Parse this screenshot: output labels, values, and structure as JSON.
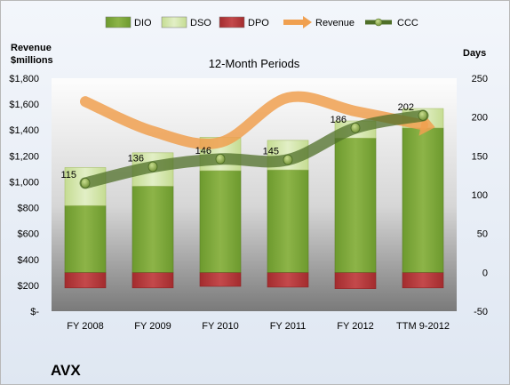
{
  "chart_data": {
    "type": "bar",
    "title": "12-Month Periods",
    "company": "AVX",
    "categories": [
      "FY 2008",
      "FY 2009",
      "FY 2010",
      "FY 2011",
      "FY 2012",
      "TTM 9-2012"
    ],
    "left_axis": {
      "label_line1": "Revenue",
      "label_line2": "$millions",
      "range": [
        0,
        1800
      ],
      "ticks": [
        0,
        200,
        400,
        600,
        800,
        1000,
        1200,
        1400,
        1600,
        1800
      ],
      "tick_labels": [
        "$-",
        "$200",
        "$400",
        "$600",
        "$800",
        "$1,000",
        "$1,200",
        "$1,400",
        "$1,600",
        "$1,800"
      ]
    },
    "right_axis": {
      "label": "Days",
      "range": [
        -50,
        250
      ],
      "ticks": [
        -50,
        0,
        50,
        100,
        150,
        200,
        250
      ],
      "tick_labels": [
        "-50",
        "0",
        "50",
        "100",
        "150",
        "200",
        "250"
      ]
    },
    "legend": [
      "DIO",
      "DSO",
      "DPO",
      "Revenue",
      "CCC"
    ],
    "colors": {
      "DIO": "#7fa53a",
      "DSO": "#cfe2a2",
      "DPO": "#b8383a",
      "Revenue": "#f0a050",
      "CCC": "#4f6f28",
      "ccc_marker": "#9bbb59"
    },
    "series": [
      {
        "name": "DIO",
        "axis": "right",
        "values": [
          86,
          111,
          131,
          132,
          173,
          186
        ]
      },
      {
        "name": "DSO",
        "axis": "right",
        "values": [
          49,
          43,
          43,
          38,
          22,
          25
        ]
      },
      {
        "name": "DPO",
        "axis": "right",
        "values": [
          -20,
          -20,
          -18,
          -19,
          -21,
          -20
        ]
      },
      {
        "name": "Revenue",
        "axis": "left",
        "values": [
          1620,
          1390,
          1305,
          1650,
          1545,
          1440
        ]
      },
      {
        "name": "CCC",
        "axis": "right",
        "values": [
          115,
          136,
          146,
          145,
          186,
          202
        ]
      }
    ],
    "ccc_labels": [
      "115",
      "136",
      "146",
      "145",
      "186",
      "202"
    ]
  }
}
